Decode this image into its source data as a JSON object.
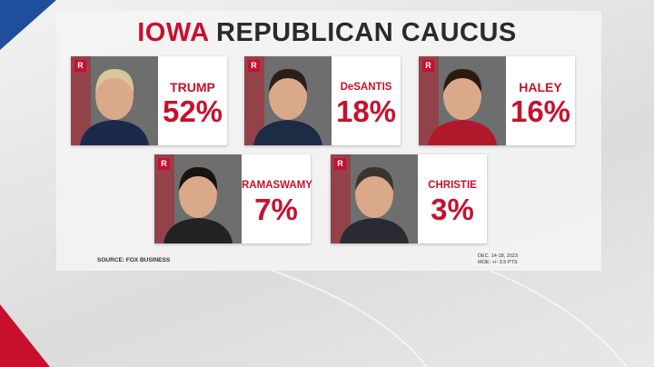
{
  "title": {
    "state": "IOWA",
    "rest": "REPUBLICAN CAUCUS"
  },
  "candidates": [
    {
      "party": "R",
      "name": "TRUMP",
      "pct": "52%"
    },
    {
      "party": "R",
      "name": "DeSANTIS",
      "pct": "18%"
    },
    {
      "party": "R",
      "name": "HALEY",
      "pct": "16%"
    },
    {
      "party": "R",
      "name": "RAMASWAMY",
      "pct": "7%"
    },
    {
      "party": "R",
      "name": "CHRISTIE",
      "pct": "3%"
    }
  ],
  "footer": {
    "source": "SOURCE: FOX BUSINESS",
    "dates": "DEC. 14-18, 2023",
    "moe": "MOE: +/- 3.5 PTS"
  }
}
